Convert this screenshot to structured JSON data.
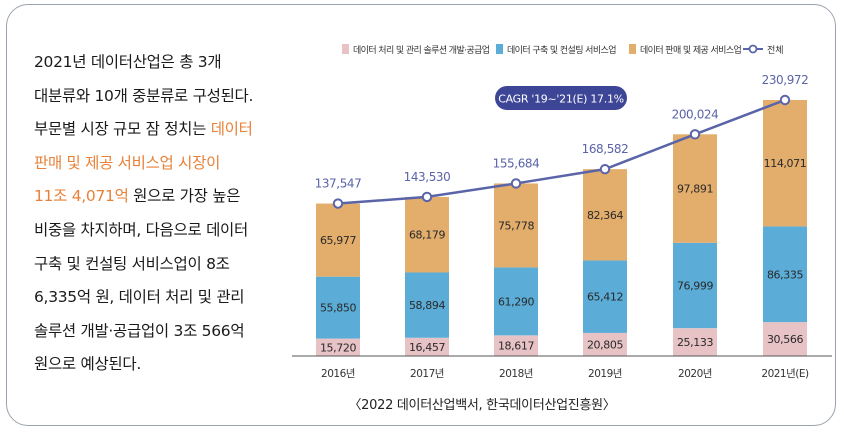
{
  "description": {
    "lines": [
      {
        "segments": [
          {
            "text": "2021년 데이터산업은 총 3개",
            "highlight": false
          }
        ]
      },
      {
        "segments": [
          {
            "text": "대분류와 10개 중분류로 구성된다.",
            "highlight": false
          }
        ]
      },
      {
        "segments": [
          {
            "text": "부문별 시장 규모 잠 정치는 ",
            "highlight": false
          },
          {
            "text": "데이터",
            "highlight": true
          }
        ]
      },
      {
        "segments": [
          {
            "text": "판매 및 제공 서비스업 시장이",
            "highlight": true
          }
        ]
      },
      {
        "segments": [
          {
            "text": "11조 4,071억",
            "highlight": true
          },
          {
            "text": " 원으로 가장 높은",
            "highlight": false
          }
        ]
      },
      {
        "segments": [
          {
            "text": "비중을 차지하며, 다음으로 데이터",
            "highlight": false
          }
        ]
      },
      {
        "segments": [
          {
            "text": "구축 및 컨설팅 서비스업이 8조",
            "highlight": false
          }
        ]
      },
      {
        "segments": [
          {
            "text": "6,335억 원, 데이터 처리 및 관리",
            "highlight": false
          }
        ]
      },
      {
        "segments": [
          {
            "text": "솔루션 개발·공급업이 3조 566억",
            "highlight": false
          }
        ]
      },
      {
        "segments": [
          {
            "text": "원으로 예상된다.",
            "highlight": false
          }
        ]
      }
    ]
  },
  "source": "〈2022 데이터산업백서, 한국데이터산업진흥원〉",
  "colors": {
    "highlight": "#e8823a",
    "processing": "#e8c3c6",
    "building": "#5badd8",
    "sales": "#e3ad6c",
    "total_line": "#5a64a8",
    "cagr_box": "#3d4596",
    "axis": "#555555"
  },
  "chart_data": {
    "type": "stacked-bar-with-line",
    "categories": [
      "2016년",
      "2017년",
      "2018년",
      "2019년",
      "2020년",
      "2021년(E)"
    ],
    "series": [
      {
        "name": "데이터 처리 및 관리 솔루션 개발·공급업",
        "key": "processing",
        "values": [
          15720,
          16457,
          18617,
          20805,
          25133,
          30566
        ],
        "labels": [
          "15,720",
          "16,457",
          "18,617",
          "20,805",
          "25,133",
          "30,566"
        ]
      },
      {
        "name": "데이터 구축 및 컨설팅 서비스업",
        "key": "building",
        "values": [
          55850,
          58894,
          61290,
          65412,
          76999,
          86335
        ],
        "labels": [
          "55,850",
          "58,894",
          "61,290",
          "65,412",
          "76,999",
          "86,335"
        ]
      },
      {
        "name": "데이터 판매 및 제공 서비스업",
        "key": "sales",
        "values": [
          65977,
          68179,
          75778,
          82364,
          97891,
          114071
        ],
        "labels": [
          "65,977",
          "68,179",
          "75,778",
          "82,364",
          "97,891",
          "114,071"
        ]
      }
    ],
    "total": {
      "name": "전체",
      "values": [
        137547,
        143530,
        155684,
        168582,
        200024,
        230972
      ],
      "labels": [
        "137,547",
        "143,530",
        "155,684",
        "168,582",
        "200,024",
        "230,972"
      ]
    },
    "annotation": "CAGR '19~'21(E) 17.1%",
    "ylim": [
      0,
      230972
    ],
    "legend_position": "top"
  }
}
